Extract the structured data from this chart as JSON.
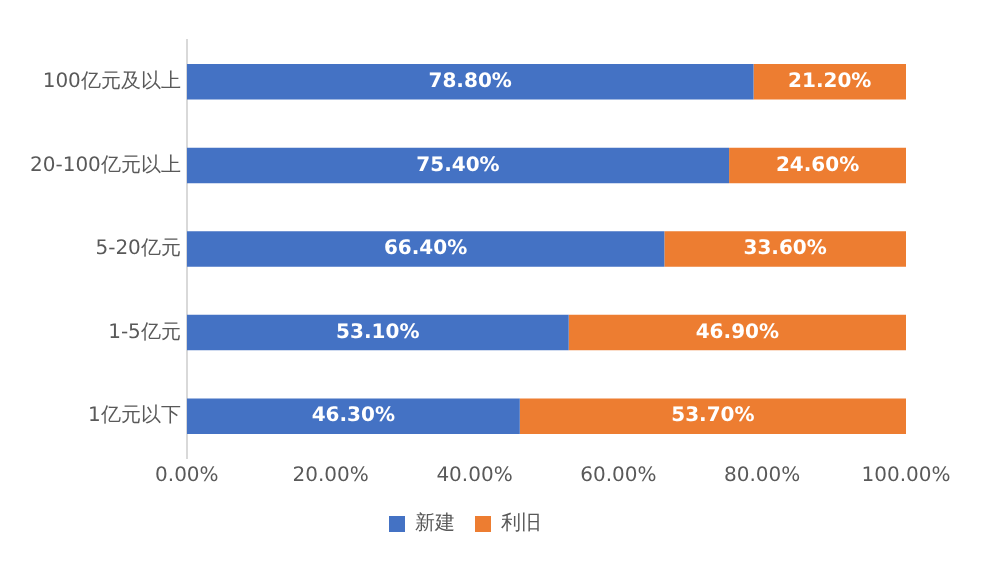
{
  "chart_data": {
    "type": "bar",
    "orientation": "horizontal",
    "stacked": true,
    "categories": [
      "100亿元及以上",
      "20-100亿元以上",
      "5-20亿元",
      "1-5亿元",
      "1亿元以下"
    ],
    "series": [
      {
        "name": "新建",
        "color": "#4472c4",
        "values": [
          78.8,
          75.4,
          66.4,
          53.1,
          46.3
        ],
        "value_labels": [
          "78.80%",
          "75.40%",
          "66.40%",
          "53.10%",
          "46.30%"
        ]
      },
      {
        "name": "利旧",
        "color": "#ed7d31",
        "values": [
          21.2,
          24.6,
          33.6,
          46.9,
          53.7
        ],
        "value_labels": [
          "21.20%",
          "24.60%",
          "33.60%",
          "46.90%",
          "53.70%"
        ]
      }
    ],
    "xlim": [
      0,
      100
    ],
    "xticks": [
      {
        "value": 0,
        "label": "0.00%"
      },
      {
        "value": 20,
        "label": "20.00%"
      },
      {
        "value": 40,
        "label": "40.00%"
      },
      {
        "value": 60,
        "label": "60.00%"
      },
      {
        "value": 80,
        "label": "80.00%"
      },
      {
        "value": 100,
        "label": "100.00%"
      }
    ],
    "grid": false,
    "legend": "bottom"
  }
}
